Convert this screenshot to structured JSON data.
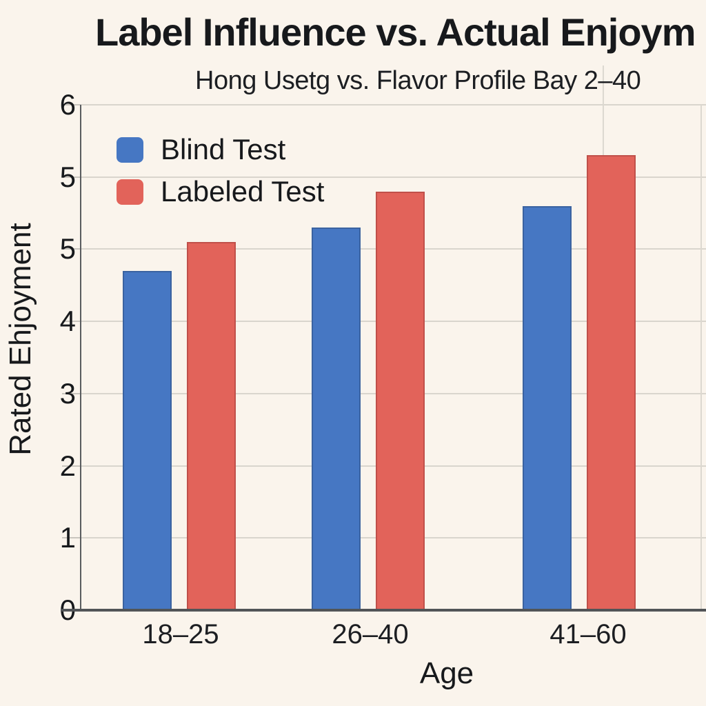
{
  "page": {
    "background": "#FAF4EC",
    "text_color": "#17191C"
  },
  "chart_data": {
    "type": "bar",
    "title": "Label Influence vs. Actual Enjoym",
    "subtitle": "Hong Usetg vs. Flavor Profile Bay 2–40",
    "xlabel": "Age",
    "ylabel": "Rated Ehjoyment",
    "categories": [
      "18–25",
      "26–40",
      "41–60"
    ],
    "series": [
      {
        "name": "Blind Test",
        "color": "#4677C3",
        "border": "#3A62A0",
        "values": [
          4.7,
          5.3,
          5.6
        ]
      },
      {
        "name": "Labeled Test",
        "color": "#E2635A",
        "border": "#C0504A",
        "values": [
          5.1,
          5.8,
          6.3
        ]
      }
    ],
    "y_tick_labels_bottom_to_top": [
      "0",
      "1",
      "2",
      "3",
      "4",
      "5",
      "5",
      "6"
    ],
    "ylim": [
      0,
      7
    ],
    "grid": true,
    "legend_position": "top-left",
    "colors": {
      "gridline": "#D9D5CD",
      "axis_baseline": "#515457",
      "axis_spine": "#595C5F",
      "tick": "#C9C5BE"
    }
  }
}
